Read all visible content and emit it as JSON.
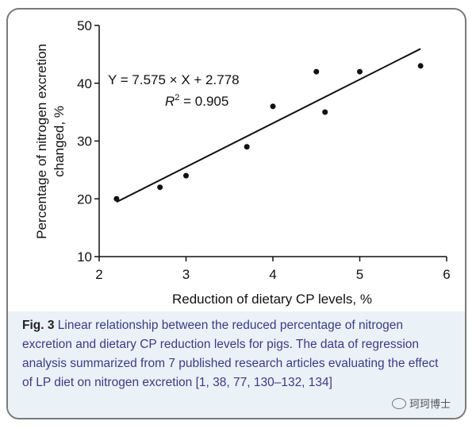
{
  "chart_data": {
    "type": "scatter",
    "x": [
      2.2,
      2.7,
      3.0,
      3.7,
      4.0,
      4.5,
      4.6,
      5.0,
      5.7
    ],
    "y": [
      20,
      22,
      24,
      29,
      36,
      42,
      35,
      42,
      43
    ],
    "xlabel": "Reduction of dietary CP levels, %",
    "ylabel": "Percentage of nitrogen excretion changed, %",
    "xlim": [
      2,
      6
    ],
    "ylim": [
      10,
      50
    ],
    "xticks": [
      "2",
      "3",
      "4",
      "5",
      "6"
    ],
    "yticks": [
      "10",
      "20",
      "30",
      "40",
      "50"
    ],
    "trendline": {
      "slope": 7.575,
      "intercept": 2.778,
      "x_range": [
        2.2,
        5.7
      ]
    },
    "equation": "Y = 7.575 × X + 2.778",
    "r2_label": "R",
    "r2_sup": "2",
    "r2_value": " = 0.905",
    "grid": false,
    "point_color": "#111111"
  },
  "caption": {
    "label": "Fig. 3",
    "text": " Linear relationship between the reduced percentage of nitrogen excretion and dietary CP reduction levels for pigs. The data of regression analysis summarized from 7 published research articles evaluating the effect of LP diet on nitrogen excretion ",
    "citation": "[1, 38, 77, 130–132, 134]"
  },
  "watermark": {
    "text": "珂珂博士",
    "icon": "wechat-icon"
  }
}
